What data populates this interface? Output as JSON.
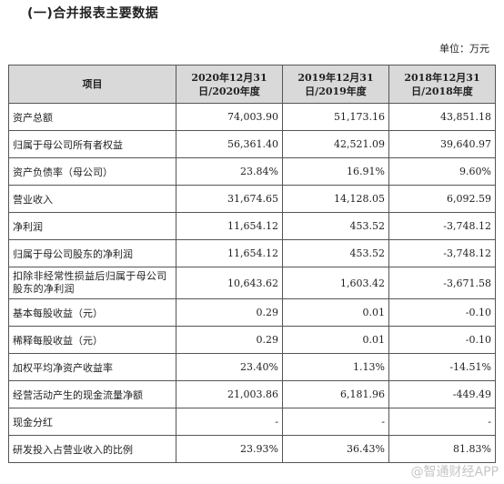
{
  "header": {
    "section_title": "(一)合并报表主要数据",
    "unit": "单位：万元"
  },
  "table": {
    "columns": [
      "项目",
      "2020年12月31日/2020年度",
      "2019年12月31日/2019年度",
      "2018年12月31日/2018年度"
    ],
    "rows": [
      {
        "label": "资产总额",
        "v2020": "74,003.90",
        "v2019": "51,173.16",
        "v2018": "43,851.18"
      },
      {
        "label": "归属于母公司所有者权益",
        "v2020": "56,361.40",
        "v2019": "42,521.09",
        "v2018": "39,640.97"
      },
      {
        "label": "资产负债率（母公司）",
        "v2020": "23.84%",
        "v2019": "16.91%",
        "v2018": "9.60%"
      },
      {
        "label": "营业收入",
        "v2020": "31,674.65",
        "v2019": "14,128.05",
        "v2018": "6,092.59"
      },
      {
        "label": "净利润",
        "v2020": "11,654.12",
        "v2019": "453.52",
        "v2018": "-3,748.12"
      },
      {
        "label": "归属于母公司股东的净利润",
        "v2020": "11,654.12",
        "v2019": "453.52",
        "v2018": "-3,748.12"
      },
      {
        "label": "扣除非经常性损益后归属于母公司股东的净利润",
        "v2020": "10,643.62",
        "v2019": "1,603.42",
        "v2018": "-3,671.58"
      },
      {
        "label": "基本每股收益（元）",
        "v2020": "0.29",
        "v2019": "0.01",
        "v2018": "-0.10"
      },
      {
        "label": "稀释每股收益（元）",
        "v2020": "0.29",
        "v2019": "0.01",
        "v2018": "-0.10"
      },
      {
        "label": "加权平均净资产收益率",
        "v2020": "23.40%",
        "v2019": "1.13%",
        "v2018": "-14.51%"
      },
      {
        "label": "经营活动产生的现金流量净额",
        "v2020": "21,003.86",
        "v2019": "6,181.96",
        "v2018": "-449.49"
      },
      {
        "label": "现金分红",
        "v2020": "-",
        "v2019": "-",
        "v2018": "-"
      },
      {
        "label": "研发投入占营业收入的比例",
        "v2020": "23.93%",
        "v2019": "36.43%",
        "v2018": "81.83%"
      }
    ]
  },
  "watermark": "@智通财经APP"
}
